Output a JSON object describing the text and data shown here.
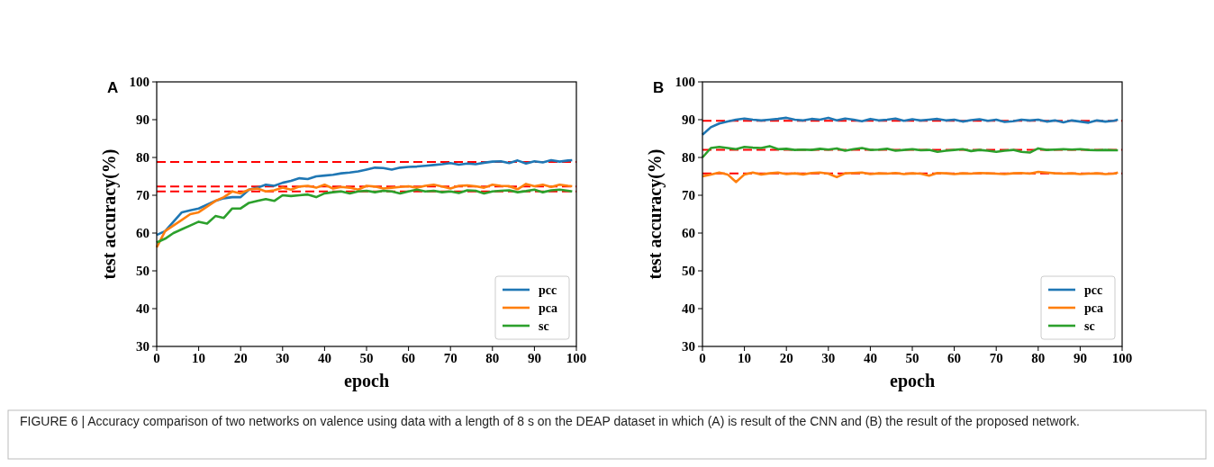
{
  "chart_data": [
    {
      "type": "line",
      "title": "A",
      "xlabel": "epoch",
      "ylabel": "test accuracy(%)",
      "x": [
        0,
        2,
        4,
        6,
        8,
        10,
        12,
        14,
        16,
        18,
        20,
        22,
        24,
        26,
        28,
        30,
        32,
        34,
        36,
        38,
        40,
        42,
        44,
        46,
        48,
        50,
        52,
        54,
        56,
        58,
        60,
        62,
        64,
        66,
        68,
        70,
        72,
        74,
        76,
        78,
        80,
        82,
        84,
        86,
        88,
        90,
        92,
        94,
        96,
        98,
        99
      ],
      "xlim": [
        0,
        100
      ],
      "xticks": [
        0,
        10,
        20,
        30,
        40,
        50,
        60,
        70,
        80,
        90,
        100
      ],
      "ylim": [
        30,
        100
      ],
      "yticks": [
        30,
        40,
        50,
        60,
        70,
        80,
        90,
        100
      ],
      "grid": false,
      "legend": "bottom right",
      "line_style": "solid",
      "marker": "none",
      "series": [
        {
          "name": "pcc",
          "color": "#1f77b4",
          "values": [
            59.5,
            60.5,
            63,
            65.5,
            66,
            66.5,
            67.5,
            68.5,
            69.2,
            69.5,
            69.5,
            71.5,
            72,
            72.8,
            72.5,
            73.3,
            73.8,
            74.5,
            74.3,
            75,
            75.2,
            75.4,
            75.8,
            76,
            76.3,
            76.8,
            77.3,
            77.2,
            76.8,
            77.3,
            77.5,
            77.6,
            77.8,
            78,
            78.2,
            78.5,
            78.1,
            78.4,
            78.2,
            78.6,
            78.9,
            79,
            78.5,
            79.2,
            78.4,
            79,
            78.7,
            79.3,
            78.9,
            79.2,
            79.3
          ]
        },
        {
          "name": "pca",
          "color": "#ff7f0e",
          "values": [
            56.2,
            60.5,
            62,
            63.5,
            65,
            65.5,
            67,
            68.5,
            69.5,
            71,
            70.5,
            71.5,
            71.8,
            71,
            71.3,
            72,
            71.5,
            72.3,
            72.5,
            72,
            72.8,
            71.8,
            72.2,
            72,
            71.5,
            72.5,
            72.3,
            71.8,
            72,
            72.2,
            72.4,
            72,
            72.5,
            72.8,
            72.3,
            71.8,
            72.5,
            72.6,
            72.4,
            72,
            72.8,
            72.5,
            72.4,
            71.6,
            73,
            72.4,
            72.8,
            72.2,
            72.8,
            72.5,
            72.4
          ]
        },
        {
          "name": "sc",
          "color": "#2ca02c",
          "values": [
            57.5,
            58.5,
            60,
            61,
            62,
            63,
            62.5,
            64.5,
            64,
            66.5,
            66.5,
            68,
            68.5,
            69,
            68.5,
            70,
            69.8,
            70,
            70.2,
            69.5,
            70.5,
            70.8,
            71,
            70.5,
            71,
            71.2,
            70.8,
            71.2,
            71,
            70.5,
            71,
            71.5,
            71,
            71.2,
            70.8,
            71,
            70.6,
            71.3,
            71.2,
            70.5,
            71,
            71.2,
            71.3,
            70.8,
            71.1,
            71.5,
            70.8,
            71.3,
            71.5,
            71.2,
            71
          ]
        }
      ],
      "ref_lines": [
        {
          "axis": "y",
          "value": 78.8,
          "color": "#ff0000",
          "line_style": "dashed"
        },
        {
          "axis": "y",
          "value": 72.3,
          "color": "#ff0000",
          "line_style": "dashed"
        },
        {
          "axis": "y",
          "value": 71,
          "color": "#ff0000",
          "line_style": "dashed"
        }
      ],
      "annotations": [
        "FIGURE 6 | Accuracy comparison of two networks on valence using data with a length of 8 s on the DEAP dataset in which (A) is result of the CNN and (B) the result of the proposed network."
      ]
    },
    {
      "type": "line",
      "title": "B",
      "xlabel": "epoch",
      "ylabel": "test accuracy(%)",
      "x": [
        0,
        2,
        4,
        6,
        8,
        10,
        12,
        14,
        16,
        18,
        20,
        22,
        24,
        26,
        28,
        30,
        32,
        34,
        36,
        38,
        40,
        42,
        44,
        46,
        48,
        50,
        52,
        54,
        56,
        58,
        60,
        62,
        64,
        66,
        68,
        70,
        72,
        74,
        76,
        78,
        80,
        82,
        84,
        86,
        88,
        90,
        92,
        94,
        96,
        98,
        99
      ],
      "xlim": [
        0,
        100
      ],
      "xticks": [
        0,
        10,
        20,
        30,
        40,
        50,
        60,
        70,
        80,
        90,
        100
      ],
      "ylim": [
        30,
        100
      ],
      "yticks": [
        30,
        40,
        50,
        60,
        70,
        80,
        90,
        100
      ],
      "grid": false,
      "legend": "bottom right",
      "line_style": "solid",
      "marker": "none",
      "series": [
        {
          "name": "pcc",
          "color": "#1f77b4",
          "values": [
            86,
            88,
            89,
            89.5,
            90,
            90.3,
            90,
            89.8,
            90,
            90.2,
            90.5,
            90,
            89.8,
            90.2,
            90,
            90.5,
            89.8,
            90.3,
            90,
            89.6,
            90.2,
            89.8,
            90,
            90.3,
            89.7,
            90.1,
            89.8,
            90,
            90.2,
            89.8,
            90,
            89.5,
            89.9,
            90.1,
            89.7,
            90,
            89.4,
            89.6,
            90,
            89.8,
            90,
            89.5,
            89.8,
            89.3,
            89.8,
            89.5,
            89.2,
            89.8,
            89.5,
            89.7,
            90
          ]
        },
        {
          "name": "pca",
          "color": "#ff7f0e",
          "values": [
            75,
            75.5,
            76,
            75.5,
            73.5,
            75.5,
            76,
            75.5,
            75.8,
            76,
            75.6,
            75.8,
            75.5,
            75.9,
            76,
            75.7,
            74.8,
            75.8,
            75.9,
            76,
            75.6,
            75.8,
            75.7,
            75.9,
            75.6,
            75.8,
            75.7,
            75.2,
            75.9,
            75.8,
            75.6,
            75.8,
            75.7,
            75.9,
            75.8,
            75.7,
            75.6,
            75.8,
            75.9,
            75.7,
            76.2,
            76,
            75.8,
            75.7,
            75.8,
            75.6,
            75.7,
            75.8,
            75.6,
            75.7,
            76
          ]
        },
        {
          "name": "sc",
          "color": "#2ca02c",
          "values": [
            80,
            82.5,
            82.8,
            82.5,
            82.2,
            82.8,
            82.6,
            82.5,
            83,
            82.2,
            82.3,
            82,
            82.1,
            82,
            82.3,
            82.1,
            82.4,
            81.8,
            82.2,
            82.5,
            82,
            82.1,
            82.3,
            81.8,
            82,
            82.2,
            81.9,
            82,
            81.5,
            81.8,
            82,
            82.2,
            81.7,
            82,
            81.8,
            81.5,
            81.8,
            82,
            81.5,
            81.3,
            82.4,
            82,
            82.1,
            82.2,
            82.1,
            82.2,
            82,
            81.9,
            82,
            81.9,
            81.9
          ]
        }
      ],
      "ref_lines": [
        {
          "axis": "y",
          "value": 89.7,
          "color": "#ff0000",
          "line_style": "dashed"
        },
        {
          "axis": "y",
          "value": 82,
          "color": "#ff0000",
          "line_style": "dashed"
        },
        {
          "axis": "y",
          "value": 75.8,
          "color": "#ff0000",
          "line_style": "dashed"
        }
      ]
    }
  ]
}
